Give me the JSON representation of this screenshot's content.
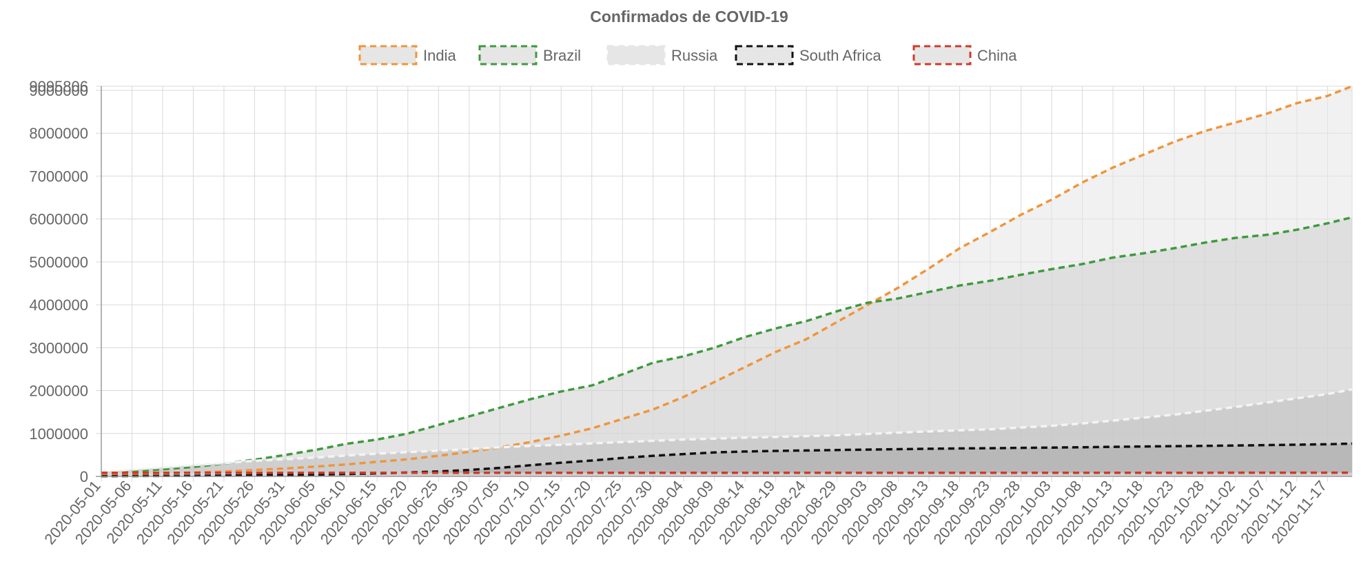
{
  "chart_data": {
    "type": "area",
    "title": "Confirmados de COVID-19",
    "xlabel": "",
    "ylabel": "",
    "ylim": [
      0,
      9095806
    ],
    "grid": true,
    "stacked": false,
    "legend_position": "top-center",
    "y_ticks": [
      "0",
      "1000000",
      "2000000",
      "3000000",
      "4000000",
      "5000000",
      "6000000",
      "7000000",
      "8000000",
      "9000000",
      "9095806"
    ],
    "x_tick_labels": [
      "2020-05-01",
      "2020-05-06",
      "2020-05-11",
      "2020-05-16",
      "2020-05-21",
      "2020-05-26",
      "2020-05-31",
      "2020-06-05",
      "2020-06-10",
      "2020-06-15",
      "2020-06-20",
      "2020-06-25",
      "2020-06-30",
      "2020-07-05",
      "2020-07-10",
      "2020-07-15",
      "2020-07-20",
      "2020-07-25",
      "2020-07-30",
      "2020-08-04",
      "2020-08-09",
      "2020-08-14",
      "2020-08-19",
      "2020-08-24",
      "2020-08-29",
      "2020-09-03",
      "2020-09-08",
      "2020-09-13",
      "2020-09-18",
      "2020-09-23",
      "2020-09-28",
      "2020-10-03",
      "2020-10-08",
      "2020-10-13",
      "2020-10-18",
      "2020-10-23",
      "2020-10-28",
      "2020-11-02",
      "2020-11-07",
      "2020-11-12",
      "2020-11-17"
    ],
    "x": [
      "2020-05-01",
      "2020-05-06",
      "2020-05-11",
      "2020-05-16",
      "2020-05-21",
      "2020-05-26",
      "2020-05-31",
      "2020-06-05",
      "2020-06-10",
      "2020-06-15",
      "2020-06-20",
      "2020-06-25",
      "2020-06-30",
      "2020-07-05",
      "2020-07-10",
      "2020-07-15",
      "2020-07-20",
      "2020-07-25",
      "2020-07-30",
      "2020-08-04",
      "2020-08-09",
      "2020-08-14",
      "2020-08-19",
      "2020-08-24",
      "2020-08-29",
      "2020-09-03",
      "2020-09-08",
      "2020-09-13",
      "2020-09-18",
      "2020-09-23",
      "2020-09-28",
      "2020-10-03",
      "2020-10-08",
      "2020-10-13",
      "2020-10-18",
      "2020-10-23",
      "2020-10-28",
      "2020-11-02",
      "2020-11-07",
      "2020-11-12",
      "2020-11-17",
      "2020-11-21"
    ],
    "series": [
      {
        "name": "India",
        "color": "#f0953a",
        "fill": "#e6e6e6",
        "dash": true,
        "values": [
          35000,
          50000,
          70000,
          90000,
          115000,
          150000,
          185000,
          230000,
          280000,
          340000,
          400000,
          480000,
          570000,
          675000,
          800000,
          950000,
          1120000,
          1340000,
          1560000,
          1855000,
          2200000,
          2550000,
          2900000,
          3200000,
          3600000,
          4000000,
          4400000,
          4850000,
          5320000,
          5700000,
          6100000,
          6450000,
          6850000,
          7200000,
          7500000,
          7800000,
          8050000,
          8250000,
          8450000,
          8700000,
          8870000,
          9095806
        ]
      },
      {
        "name": "Brazil",
        "color": "#3e9a3e",
        "fill": "#d0d0d0",
        "dash": true,
        "values": [
          90000,
          120000,
          165000,
          220000,
          300000,
          390000,
          500000,
          620000,
          760000,
          860000,
          1000000,
          1200000,
          1400000,
          1600000,
          1800000,
          1980000,
          2120000,
          2380000,
          2650000,
          2800000,
          3000000,
          3250000,
          3450000,
          3620000,
          3850000,
          4050000,
          4150000,
          4300000,
          4450000,
          4560000,
          4700000,
          4830000,
          4950000,
          5100000,
          5200000,
          5320000,
          5450000,
          5560000,
          5630000,
          5750000,
          5900000,
          6040000
        ]
      },
      {
        "name": "Russia",
        "color": "#f4f4f4",
        "fill": "#bdbdbd",
        "dash": true,
        "values": [
          105000,
          160000,
          210000,
          265000,
          310000,
          365000,
          400000,
          440000,
          485000,
          530000,
          565000,
          600000,
          640000,
          680000,
          710000,
          740000,
          770000,
          800000,
          830000,
          860000,
          880000,
          905000,
          920000,
          940000,
          960000,
          990000,
          1020000,
          1050000,
          1075000,
          1100000,
          1140000,
          1180000,
          1235000,
          1300000,
          1370000,
          1440000,
          1530000,
          1620000,
          1720000,
          1820000,
          1920000,
          2030000
        ]
      },
      {
        "name": "South Africa",
        "color": "#111111",
        "fill": "#a8a8a8",
        "dash": true,
        "values": [
          6000,
          8000,
          12000,
          15000,
          20000,
          26000,
          32000,
          42000,
          55000,
          70000,
          90000,
          115000,
          150000,
          200000,
          260000,
          320000,
          370000,
          430000,
          480000,
          520000,
          560000,
          580000,
          595000,
          605000,
          615000,
          625000,
          635000,
          645000,
          652000,
          658000,
          665000,
          672000,
          680000,
          690000,
          697000,
          705000,
          712000,
          720000,
          730000,
          740000,
          750000,
          765000
        ]
      },
      {
        "name": "China",
        "color": "#d03a2a",
        "fill": "#e6e6e6",
        "dash": true,
        "values": [
          82900,
          82900,
          82900,
          82950,
          82970,
          82990,
          83020,
          83030,
          83050,
          83100,
          83300,
          83450,
          83550,
          83600,
          83650,
          83650,
          83700,
          83850,
          84050,
          84300,
          84500,
          84600,
          84800,
          85000,
          85000,
          85100,
          85150,
          85200,
          85250,
          85300,
          85400,
          85450,
          85550,
          85600,
          85700,
          85800,
          85900,
          86000,
          86150,
          86300,
          86450,
          86550
        ]
      }
    ]
  }
}
